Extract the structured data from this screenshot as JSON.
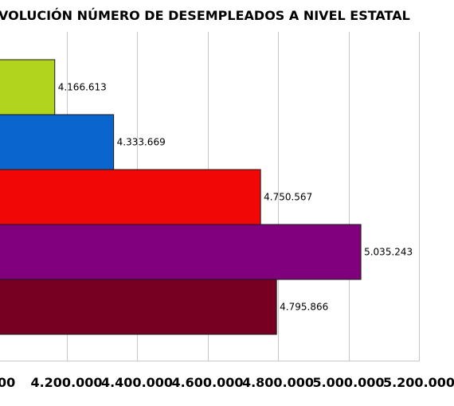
{
  "chart_data": {
    "type": "bar",
    "orientation": "horizontal",
    "title": "VOLUCIÓN NÚMERO DE DESEMPLEADOS A NIVEL ESTATAL",
    "xlabel": "",
    "ylabel": "",
    "xlim": [
      4000000,
      5200000
    ],
    "grid": true,
    "values": [
      4166613,
      4333669,
      4750567,
      5035243,
      4795866
    ],
    "value_labels": [
      "4.166.613",
      "4.333.669",
      "4.750.567",
      "5.035.243",
      "4.795.866"
    ],
    "colors": [
      "#b1d41c",
      "#0a66cc",
      "#f20707",
      "#80007c",
      "#770022"
    ],
    "x_ticks": [
      {
        "value": 4000000,
        "label": "00"
      },
      {
        "value": 4200000,
        "label": "4.200.000"
      },
      {
        "value": 4400000,
        "label": "4.400.000"
      },
      {
        "value": 4600000,
        "label": "4.600.000"
      },
      {
        "value": 4800000,
        "label": "4.800.000"
      },
      {
        "value": 5000000,
        "label": "5.000.000"
      },
      {
        "value": 5200000,
        "label": "5.200.000"
      }
    ]
  }
}
